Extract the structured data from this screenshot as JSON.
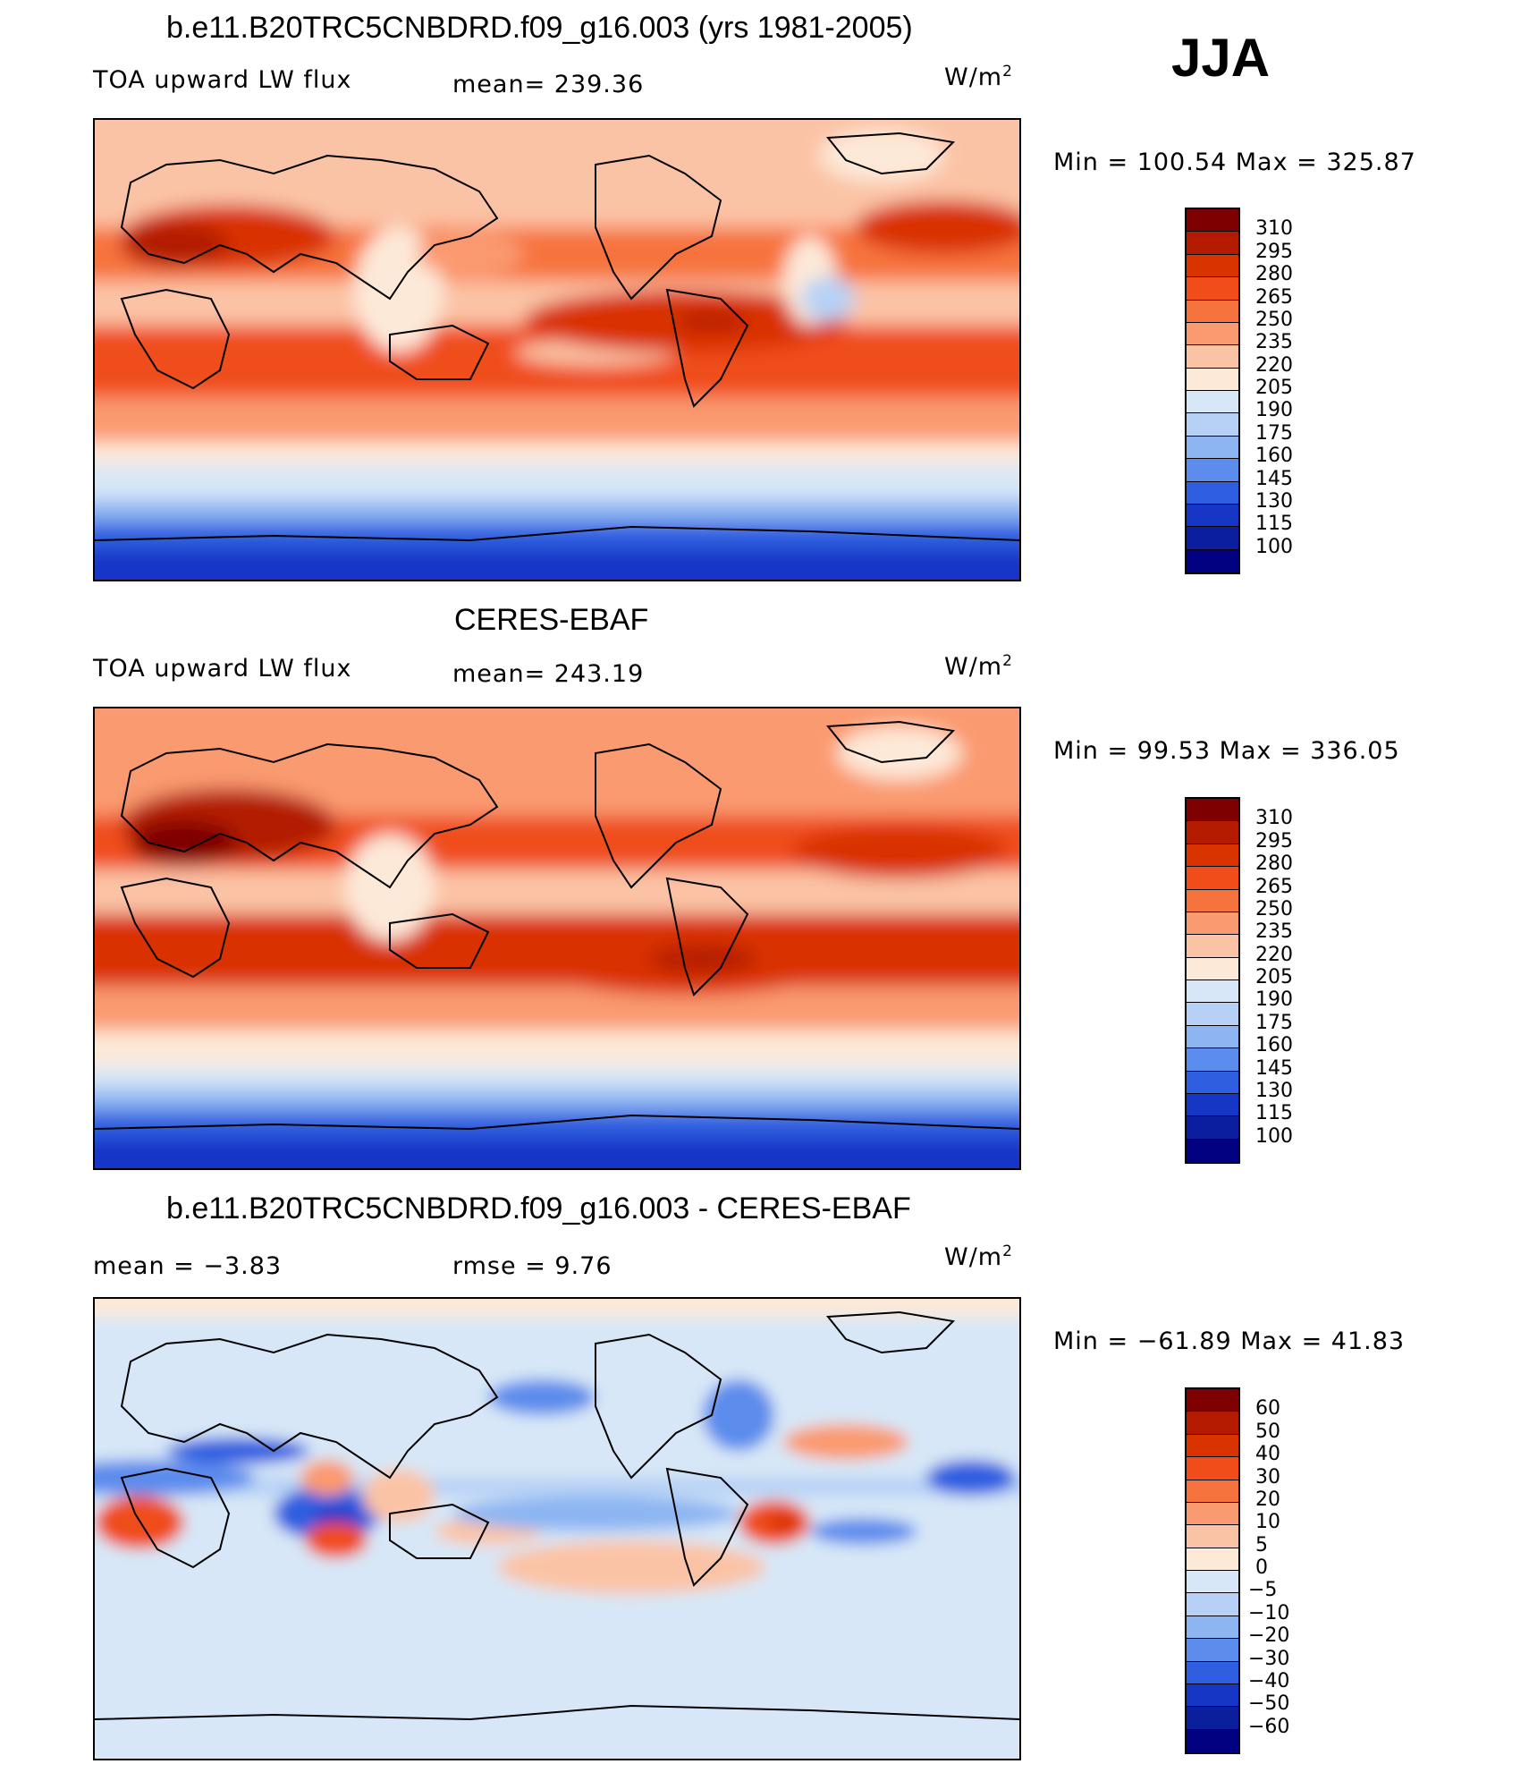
{
  "figure": {
    "season": "JJA",
    "units_base": "W/m",
    "units_exp": "2"
  },
  "panels": [
    {
      "title": "b.e11.B20TRC5CNBDRD.f09_g16.003 (yrs 1981-2005)",
      "left_label": "TOA upward LW flux",
      "stat_label": "mean=  239.36",
      "minmax": "Min  =  100.54  Max  =  325.87",
      "colorbar": {
        "labels": [
          "310",
          "295",
          "280",
          "265",
          "250",
          "235",
          "220",
          "205",
          "190",
          "175",
          "160",
          "145",
          "130",
          "115",
          "100"
        ],
        "colors": [
          "#7f0000",
          "#b31a00",
          "#d93300",
          "#f04d1a",
          "#f7733d",
          "#fa9a70",
          "#fbc3a5",
          "#fde9d8",
          "#d7e7f7",
          "#b6d1f5",
          "#8cb5f2",
          "#5c8cec",
          "#2f5fe0",
          "#1636c6",
          "#0b1f9e",
          "#000080"
        ]
      }
    },
    {
      "title": "CERES-EBAF",
      "left_label": "TOA upward LW flux",
      "stat_label": "mean=  243.19",
      "minmax": "Min  =   99.53  Max  =  336.05",
      "colorbar": {
        "labels": [
          "310",
          "295",
          "280",
          "265",
          "250",
          "235",
          "220",
          "205",
          "190",
          "175",
          "160",
          "145",
          "130",
          "115",
          "100"
        ],
        "colors": [
          "#7f0000",
          "#b31a00",
          "#d93300",
          "#f04d1a",
          "#f7733d",
          "#fa9a70",
          "#fbc3a5",
          "#fde9d8",
          "#d7e7f7",
          "#b6d1f5",
          "#8cb5f2",
          "#5c8cec",
          "#2f5fe0",
          "#1636c6",
          "#0b1f9e",
          "#000080"
        ]
      }
    },
    {
      "title": "b.e11.B20TRC5CNBDRD.f09_g16.003 - CERES-EBAF",
      "left_label": "mean  =    −3.83",
      "stat_label": "rmse  =     9.76",
      "minmax": "Min  =  −61.89  Max  =    41.83",
      "colorbar": {
        "labels": [
          "60",
          "50",
          "40",
          "30",
          "20",
          "10",
          "5",
          "0",
          "−5",
          "−10",
          "−20",
          "−30",
          "−40",
          "−50",
          "−60"
        ],
        "colors": [
          "#7f0000",
          "#b31a00",
          "#d93300",
          "#f04d1a",
          "#f7733d",
          "#fa9a70",
          "#fbc3a5",
          "#fde9d8",
          "#d7e7f7",
          "#b6d1f5",
          "#8cb5f2",
          "#5c8cec",
          "#2f5fe0",
          "#1636c6",
          "#0b1f9e",
          "#000080"
        ]
      }
    }
  ]
}
